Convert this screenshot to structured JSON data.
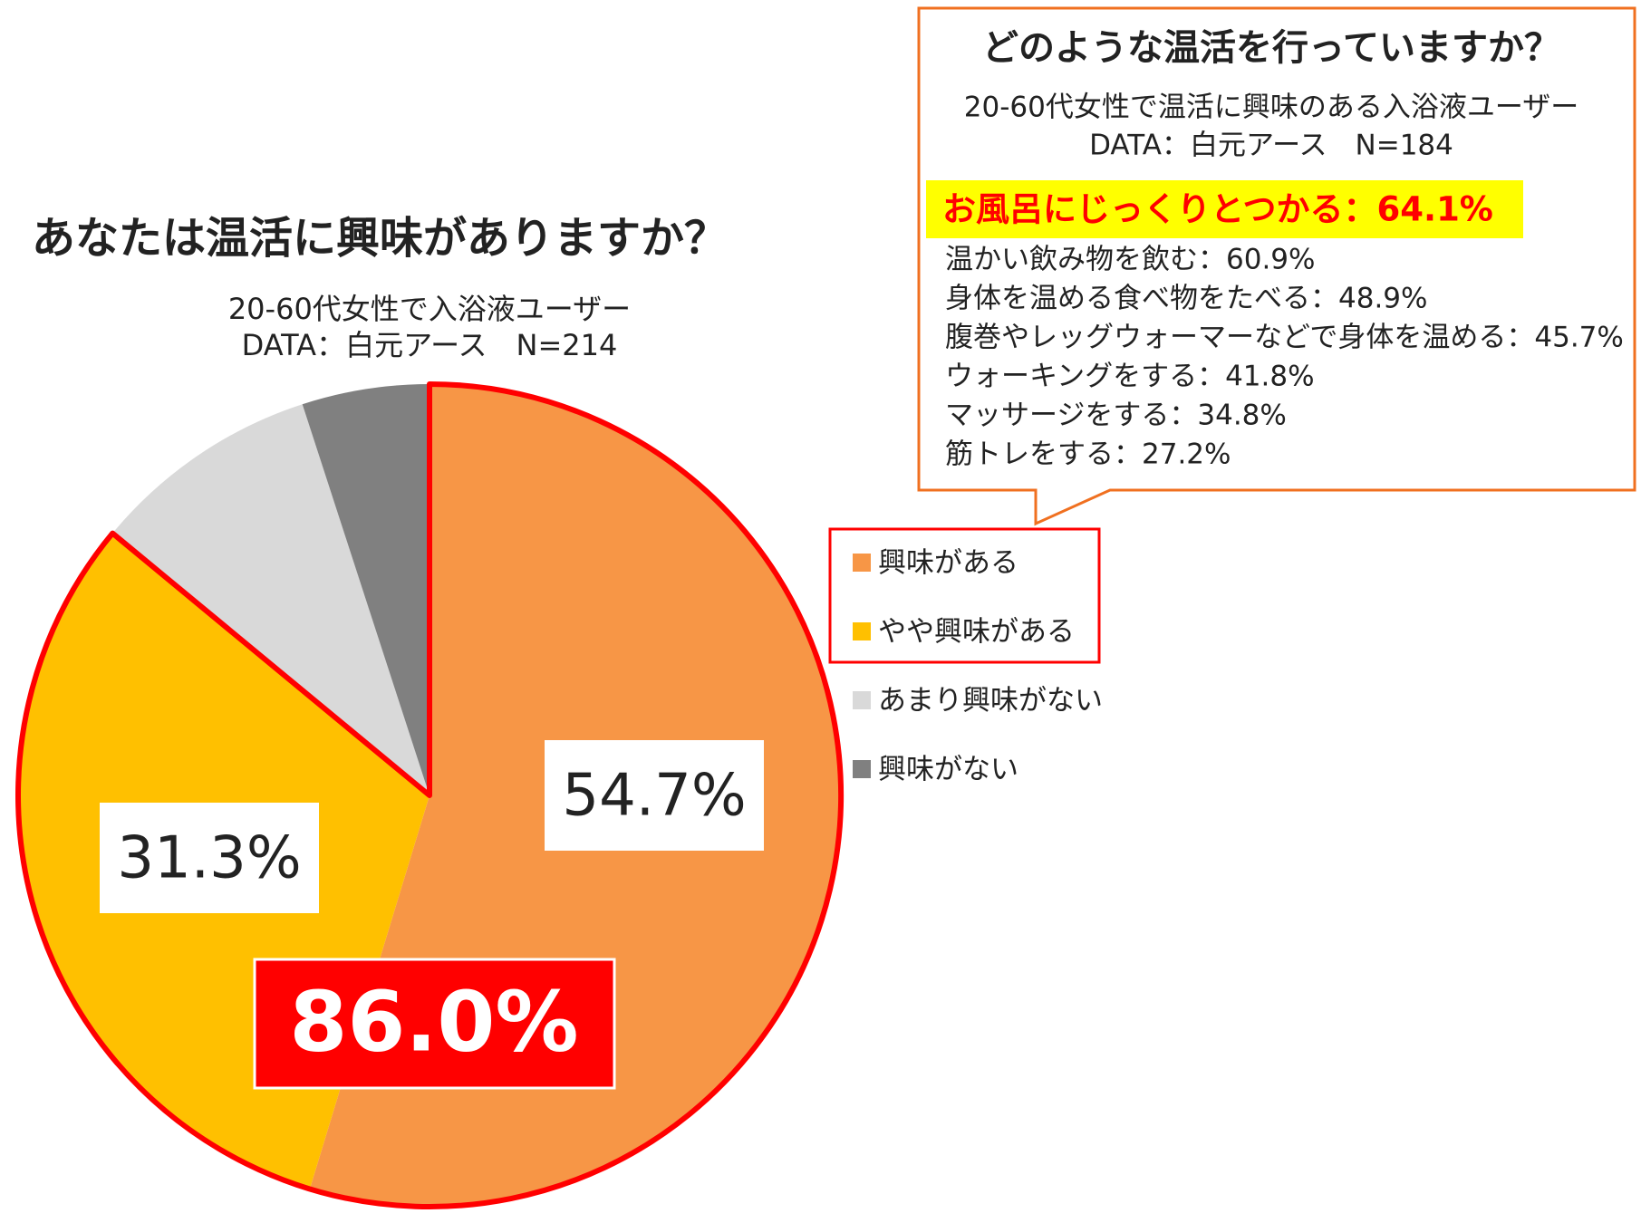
{
  "chart_data": {
    "type": "pie",
    "title": "あなたは温活に興味がありますか？",
    "subtitle": [
      "20-60代女性で入浴液ユーザー",
      "DATA：白元アース　N=214"
    ],
    "categories": [
      "興味がある",
      "やや興味がある",
      "あまり興味がない",
      "興味がない"
    ],
    "values": [
      54.7,
      31.3,
      9.0,
      5.0
    ],
    "value_labels": [
      "54.7%",
      "31.3%",
      null,
      null
    ],
    "colors": [
      "#f79646",
      "#ffc000",
      "#d9d9d9",
      "#808080"
    ],
    "highlight_label": "86.0%",
    "callout": {
      "title": "どのような温活を行っていますか？",
      "subtitle": [
        "20-60代女性で温活に興味のある入浴液ユーザー",
        "DATA：白元アース　N=184"
      ],
      "highlight": "お風呂にじっくりとつかる：64.1%",
      "items": [
        "温かい飲み物を飲む：60.9%",
        "身体を温める食べ物をたべる：48.9%",
        "腹巻やレッグウォーマーなどで身体を温める：45.7%",
        "ウォーキングをする：41.8%",
        "マッサージをする：34.8%",
        "筋トレをする：27.2%"
      ]
    }
  }
}
